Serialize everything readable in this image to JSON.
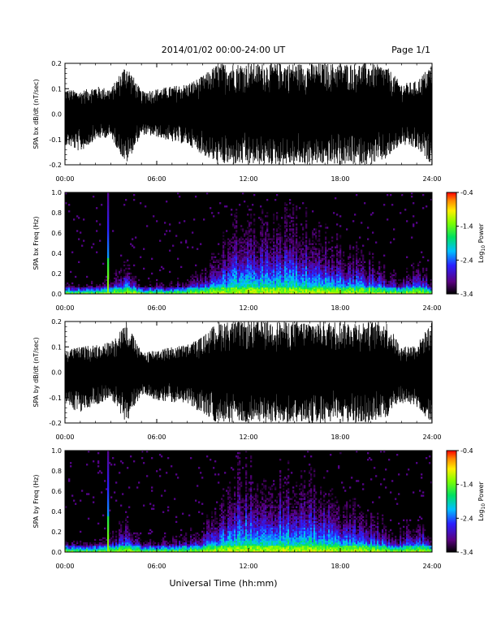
{
  "header": {
    "title": "2014/01/02  00:00-24:00 UT",
    "page": "Page 1/1"
  },
  "xlabel": "Universal Time (hh:mm)",
  "colors": {
    "background": "#ffffff",
    "axis": "#000000",
    "trace": "#000000"
  },
  "colorbar": {
    "label": "Log10 Power",
    "label_base": "Log",
    "label_sub": "10",
    "label_rest": " Power",
    "range": [
      -3.4,
      -0.4
    ],
    "ticks": [
      "-0.4",
      "-1.4",
      "-2.4",
      "-3.4"
    ],
    "colormap": "rainbow (black-purple-blue-cyan-green-yellow-orange-red)"
  },
  "chart_data": [
    {
      "type": "line",
      "name": "bx-waveform",
      "ylabel": "SPA bx dB/dt (nT/sec)",
      "x_range_hours": [
        0,
        24
      ],
      "ylim": [
        -0.2,
        0.2
      ],
      "xticks": [
        "00:00",
        "06:00",
        "12:00",
        "18:00",
        "24:00"
      ],
      "yticks": [
        "0.2",
        "0.1",
        "0.0",
        "-0.1",
        "-0.2"
      ],
      "envelope": {
        "hours": [
          0,
          1,
          2,
          3,
          4,
          5,
          6,
          7,
          8,
          9,
          10,
          11,
          12,
          13,
          14,
          15,
          16,
          17,
          18,
          19,
          20,
          21,
          22,
          23,
          24
        ],
        "upper": [
          0.1,
          0.09,
          0.11,
          0.1,
          0.2,
          0.09,
          0.1,
          0.11,
          0.12,
          0.15,
          0.2,
          0.2,
          0.2,
          0.2,
          0.2,
          0.2,
          0.2,
          0.2,
          0.2,
          0.2,
          0.2,
          0.19,
          0.12,
          0.13,
          0.2
        ],
        "lower": [
          -0.12,
          -0.15,
          -0.1,
          -0.09,
          -0.2,
          -0.08,
          -0.09,
          -0.11,
          -0.12,
          -0.16,
          -0.2,
          -0.2,
          -0.2,
          -0.2,
          -0.2,
          -0.2,
          -0.2,
          -0.2,
          -0.2,
          -0.2,
          -0.2,
          -0.18,
          -0.12,
          -0.14,
          -0.2
        ]
      }
    },
    {
      "type": "heatmap",
      "name": "bx-spectrogram",
      "ylabel": "SPA bx Freq (Hz)",
      "x_range_hours": [
        0,
        24
      ],
      "ylim": [
        0.0,
        1.0
      ],
      "xticks": [
        "00:00",
        "06:00",
        "12:00",
        "18:00",
        "24:00"
      ],
      "yticks": [
        "1.0",
        "0.8",
        "0.6",
        "0.4",
        "0.2",
        "0.0"
      ],
      "activity": {
        "hours": [
          0,
          1,
          2,
          3,
          4,
          5,
          6,
          7,
          8,
          9,
          10,
          11,
          12,
          13,
          14,
          15,
          16,
          17,
          18,
          19,
          20,
          21,
          22,
          23,
          24
        ],
        "max_freq_hz": [
          0.12,
          0.1,
          0.12,
          0.15,
          0.35,
          0.1,
          0.12,
          0.12,
          0.18,
          0.28,
          0.45,
          0.75,
          0.9,
          0.8,
          0.85,
          0.8,
          0.75,
          0.7,
          0.55,
          0.45,
          0.4,
          0.25,
          0.2,
          0.35,
          0.15
        ]
      },
      "spike_hour": 2.85
    },
    {
      "type": "line",
      "name": "by-waveform",
      "ylabel": "SPA by dB/dt (nT/sec)",
      "x_range_hours": [
        0,
        24
      ],
      "ylim": [
        -0.2,
        0.2
      ],
      "xticks": [
        "00:00",
        "06:00",
        "12:00",
        "18:00",
        "24:00"
      ],
      "yticks": [
        "0.2",
        "0.1",
        "0.0",
        "-0.1",
        "-0.2"
      ],
      "envelope": {
        "hours": [
          0,
          1,
          2,
          3,
          4,
          5,
          6,
          7,
          8,
          9,
          10,
          11,
          12,
          13,
          14,
          15,
          16,
          17,
          18,
          19,
          20,
          21,
          22,
          23,
          24
        ],
        "upper": [
          0.09,
          0.1,
          0.11,
          0.12,
          0.2,
          0.08,
          0.09,
          0.1,
          0.11,
          0.14,
          0.2,
          0.2,
          0.2,
          0.2,
          0.2,
          0.2,
          0.2,
          0.2,
          0.2,
          0.2,
          0.2,
          0.2,
          0.1,
          0.11,
          0.2
        ],
        "lower": [
          -0.13,
          -0.16,
          -0.13,
          -0.1,
          -0.2,
          -0.09,
          -0.11,
          -0.12,
          -0.12,
          -0.17,
          -0.2,
          -0.2,
          -0.2,
          -0.2,
          -0.2,
          -0.2,
          -0.2,
          -0.2,
          -0.2,
          -0.2,
          -0.2,
          -0.18,
          -0.12,
          -0.14,
          -0.2
        ]
      }
    },
    {
      "type": "heatmap",
      "name": "by-spectrogram",
      "ylabel": "SPA by Freq (Hz)",
      "x_range_hours": [
        0,
        24
      ],
      "ylim": [
        0.0,
        1.0
      ],
      "xticks": [
        "00:00",
        "06:00",
        "12:00",
        "18:00",
        "24:00"
      ],
      "yticks": [
        "1.0",
        "0.8",
        "0.6",
        "0.4",
        "0.2",
        "0.0"
      ],
      "activity": {
        "hours": [
          0,
          1,
          2,
          3,
          4,
          5,
          6,
          7,
          8,
          9,
          10,
          11,
          12,
          13,
          14,
          15,
          16,
          17,
          18,
          19,
          20,
          21,
          22,
          23,
          24
        ],
        "max_freq_hz": [
          0.14,
          0.12,
          0.13,
          0.18,
          0.38,
          0.12,
          0.14,
          0.14,
          0.2,
          0.3,
          0.5,
          0.8,
          0.95,
          0.85,
          0.9,
          0.85,
          0.8,
          0.75,
          0.6,
          0.5,
          0.45,
          0.28,
          0.22,
          0.4,
          0.18
        ]
      },
      "spike_hour": 2.85
    }
  ]
}
